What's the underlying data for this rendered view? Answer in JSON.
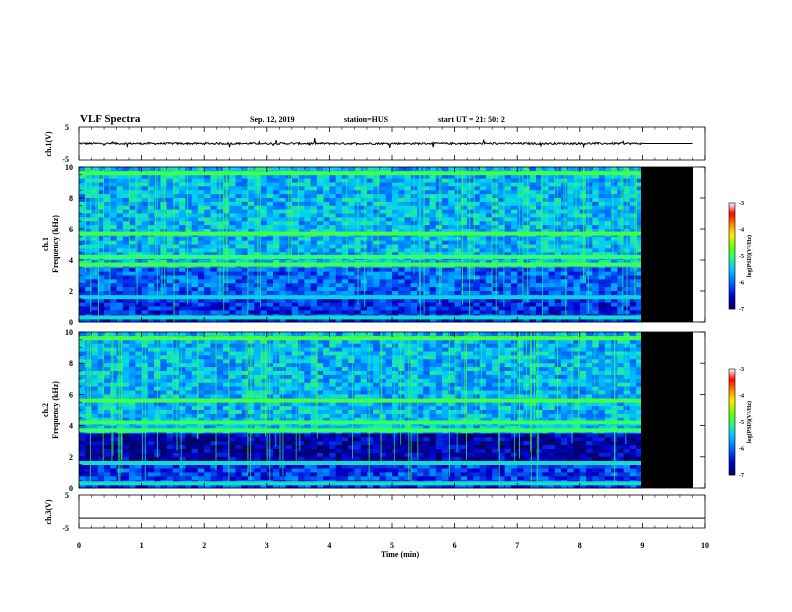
{
  "header": {
    "title": "VLF Spectra",
    "date": "Sep. 12, 2019",
    "station": "station=HUS",
    "start": "start  UT  =   21: 50: 2"
  },
  "colors": {
    "background": "#ffffff",
    "axes": "#000000",
    "no_data": "#000000",
    "colormap": [
      "#000066",
      "#0000cc",
      "#0066ff",
      "#00ccff",
      "#33ff66",
      "#66ff00",
      "#ffee00",
      "#ff8800",
      "#ff0000",
      "#ffffff"
    ]
  },
  "chart_data": [
    {
      "type": "line",
      "panel": "ch.1",
      "ylabel": "ch.1(V)",
      "ylim": [
        -5,
        5
      ],
      "yticks": [
        "5",
        "-5"
      ],
      "xlim": [
        0,
        10
      ],
      "data_end_min": 9,
      "series": [
        {
          "description": "waveform amplitude",
          "x": [
            0,
            9
          ],
          "y": [
            0,
            0
          ]
        }
      ],
      "after_data_value": 0
    },
    {
      "type": "heatmap",
      "panel": "ch.1 spectrogram",
      "ylabel_top": "ch.1",
      "ylabel": "Frequency (kHz)",
      "xlim": [
        0,
        10
      ],
      "ylim": [
        0,
        10
      ],
      "yticks": [
        "0",
        "2",
        "4",
        "6",
        "8",
        "10"
      ],
      "data_end_min": 9,
      "color_scale": {
        "label": "log(PSD)(V²/Hz)",
        "min": -7,
        "max": -3,
        "ticks": [
          "-3",
          "-4",
          "-5",
          "-6",
          "-7"
        ]
      },
      "bands_khz": [
        {
          "f": 9.6,
          "level": -4.9
        },
        {
          "f": 5.7,
          "level": -4.9
        },
        {
          "f": 4.2,
          "level": -5.0
        },
        {
          "f": 3.7,
          "level": -4.9
        },
        {
          "f": 1.6,
          "level": -5.4
        },
        {
          "f": 0.3,
          "level": -5.3
        }
      ],
      "background_levels": [
        {
          "f_range": [
            0,
            1.5
          ],
          "level": -6.3
        },
        {
          "f_range": [
            1.5,
            3.5
          ],
          "level": -6.0
        },
        {
          "f_range": [
            3.5,
            10
          ],
          "level": -5.6
        }
      ]
    },
    {
      "type": "heatmap",
      "panel": "ch.2 spectrogram",
      "ylabel_top": "ch.2",
      "ylabel": "Frequency (kHz)",
      "xlim": [
        0,
        10
      ],
      "ylim": [
        0,
        10
      ],
      "yticks": [
        "0",
        "2",
        "4",
        "6",
        "8",
        "10"
      ],
      "data_end_min": 9,
      "color_scale": {
        "label": "log(PSD)(V²/Hz)",
        "min": -7,
        "max": -3,
        "ticks": [
          "-3",
          "-4",
          "-5",
          "-6",
          "-7"
        ]
      },
      "bands_khz": [
        {
          "f": 9.6,
          "level": -4.9
        },
        {
          "f": 5.6,
          "level": -4.9
        },
        {
          "f": 4.2,
          "level": -5.0
        },
        {
          "f": 3.7,
          "level": -5.0
        },
        {
          "f": 1.6,
          "level": -5.3
        },
        {
          "f": 0.3,
          "level": -5.3
        }
      ],
      "background_levels": [
        {
          "f_range": [
            0,
            1.5
          ],
          "level": -6.2
        },
        {
          "f_range": [
            1.5,
            3.4
          ],
          "level": -6.7
        },
        {
          "f_range": [
            3.4,
            10
          ],
          "level": -5.6
        }
      ]
    },
    {
      "type": "line",
      "panel": "ch.3",
      "ylabel": "ch.3(V)",
      "ylim": [
        -5,
        5
      ],
      "yticks": [
        "5",
        "-5"
      ],
      "xlim": [
        0,
        10
      ],
      "xlabel": "Time  (min)",
      "xticks": [
        "0",
        "1",
        "2",
        "3",
        "4",
        "5",
        "6",
        "7",
        "8",
        "9",
        "10"
      ],
      "series": [
        {
          "description": "flat signal",
          "x": [
            0,
            10
          ],
          "y": [
            -2,
            -2
          ]
        }
      ]
    }
  ]
}
